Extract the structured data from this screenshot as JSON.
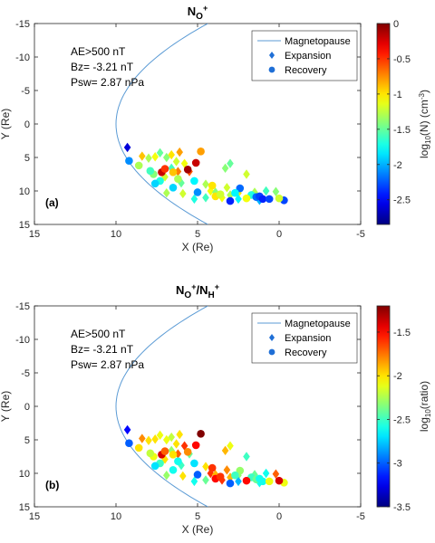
{
  "chart_data": [
    {
      "type": "scatter",
      "panel_tag": "(a)",
      "title": {
        "main": "N",
        "sub": "O",
        "sup": "+"
      },
      "xlabel": "X (Re)",
      "ylabel": "Y (Re)",
      "xlim": [
        15,
        -5
      ],
      "ylim": [
        -15,
        15
      ],
      "xticks": [
        "15",
        "10",
        "5",
        "0",
        "-5"
      ],
      "yticks": [
        "-15",
        "-10",
        "-5",
        "0",
        "5",
        "10",
        "15"
      ],
      "annotations": [
        "AE>500 nT",
        "Bz= -3.21 nT",
        "Psw= 2.87 nPa"
      ],
      "legend": [
        "Magnetopause",
        "Expansion",
        "Recovery"
      ],
      "legend_position": "top-right",
      "magnetopause_color": "#5b9bd5",
      "colorbar": {
        "label": "log10(N) (cm-3)",
        "label_parts": [
          "log",
          "10",
          "(N) (cm",
          "-3",
          ")"
        ],
        "range": [
          -2.85,
          0
        ],
        "ticks": [
          "0",
          "-0.5",
          "-1",
          "-1.5",
          "-2",
          "-2.5"
        ]
      },
      "series": [
        {
          "name": "Expansion",
          "marker": "diamond",
          "points": [
            [
              9.3,
              3.5,
              -2.6
            ],
            [
              8.4,
              4.8,
              -0.9
            ],
            [
              8.0,
              5.1,
              -1.3
            ],
            [
              7.6,
              4.9,
              -1.1
            ],
            [
              7.3,
              4.3,
              -1.5
            ],
            [
              6.9,
              5.0,
              -1.4
            ],
            [
              6.6,
              4.6,
              -1.0
            ],
            [
              6.3,
              5.6,
              -1.2
            ],
            [
              6.1,
              4.2,
              -0.8
            ],
            [
              5.8,
              5.9,
              -1.1
            ],
            [
              6.6,
              6.6,
              -1.6
            ],
            [
              6.2,
              7.1,
              -0.7
            ],
            [
              5.5,
              7.1,
              -0.6
            ],
            [
              7.0,
              7.9,
              -1.2
            ],
            [
              6.0,
              8.8,
              -1.5
            ],
            [
              4.5,
              9.0,
              -1.3
            ],
            [
              4.2,
              10.0,
              -1.1
            ],
            [
              3.9,
              10.2,
              -1.4
            ],
            [
              3.2,
              9.5,
              -1.2
            ],
            [
              3.0,
              10.6,
              -1.3
            ],
            [
              2.5,
              10.3,
              -1.0
            ],
            [
              3.3,
              6.6,
              -1.4
            ],
            [
              3.0,
              5.9,
              -1.5
            ],
            [
              2.0,
              7.5,
              -1.2
            ],
            [
              1.5,
              10.2,
              -1.3
            ],
            [
              0.8,
              10.0,
              -1.6
            ],
            [
              0.2,
              10.1,
              -1.4
            ],
            [
              1.2,
              11.4,
              -2.0
            ],
            [
              2.5,
              11.2,
              -1.8
            ],
            [
              3.5,
              11.0,
              -1.1
            ],
            [
              4.5,
              11.0,
              -1.6
            ],
            [
              5.2,
              11.2,
              -1.7
            ],
            [
              5.9,
              10.4,
              -1.2
            ],
            [
              6.9,
              10.3,
              -1.3
            ]
          ]
        },
        {
          "name": "Recovery",
          "marker": "circle",
          "points": [
            [
              9.2,
              5.5,
              -2.1
            ],
            [
              8.6,
              6.2,
              -1.3
            ],
            [
              7.7,
              7.5,
              -1.4
            ],
            [
              7.9,
              7.0,
              -1.6
            ],
            [
              7.2,
              7.2,
              -0.2
            ],
            [
              7.0,
              6.7,
              -0.5
            ],
            [
              6.5,
              7.2,
              -0.9
            ],
            [
              6.2,
              8.2,
              -1.3
            ],
            [
              7.3,
              8.5,
              -1.7
            ],
            [
              7.6,
              8.9,
              -1.9
            ],
            [
              6.5,
              9.5,
              -1.9
            ],
            [
              5.6,
              6.8,
              -0.1
            ],
            [
              5.1,
              5.8,
              -0.2
            ],
            [
              4.8,
              4.1,
              -0.8
            ],
            [
              5.2,
              8.5,
              -1.8
            ],
            [
              5.0,
              10.2,
              -2.1
            ],
            [
              3.9,
              10.8,
              -1.0
            ],
            [
              3.6,
              10.5,
              -1.2
            ],
            [
              2.4,
              9.6,
              -2.2
            ],
            [
              2.7,
              10.3,
              -1.8
            ],
            [
              1.7,
              10.6,
              -1.7
            ],
            [
              1.4,
              10.9,
              -2.2
            ],
            [
              1.2,
              10.8,
              -2.3
            ],
            [
              1.0,
              11.2,
              -2.4
            ],
            [
              0.6,
              11.2,
              -2.3
            ],
            [
              -0.3,
              11.4,
              -2.3
            ],
            [
              0.0,
              11.1,
              -1.2
            ],
            [
              4.1,
              9.2,
              -1.0
            ],
            [
              3.0,
              11.5,
              -2.4
            ],
            [
              2.0,
              11.1,
              -1.1
            ]
          ]
        }
      ]
    },
    {
      "type": "scatter",
      "panel_tag": "(b)",
      "title": {
        "main": "N",
        "sub": "O",
        "sup": "+",
        "main2": "/N",
        "sub2": "H",
        "sup2": "+"
      },
      "xlabel": "X (Re)",
      "ylabel": "Y (Re)",
      "xlim": [
        15,
        -5
      ],
      "ylim": [
        -15,
        15
      ],
      "xticks": [
        "15",
        "10",
        "5",
        "0",
        "-5"
      ],
      "yticks": [
        "-15",
        "-10",
        "-5",
        "0",
        "5",
        "10",
        "15"
      ],
      "annotations": [
        "AE>500 nT",
        "Bz= -3.21 nT",
        "Psw= 2.87 nPa"
      ],
      "legend": [
        "Magnetopause",
        "Expansion",
        "Recovery"
      ],
      "legend_position": "top-right",
      "magnetopause_color": "#5b9bd5",
      "colorbar": {
        "label": "log10(ratio)",
        "label_parts": [
          "log",
          "10",
          "(ratio)",
          "",
          ""
        ],
        "range": [
          -3.5,
          -1.2
        ],
        "ticks": [
          "-1.5",
          "-2",
          "-2.5",
          "-3",
          "-3.5"
        ]
      },
      "series": [
        {
          "name": "Expansion",
          "marker": "diamond",
          "points": [
            [
              9.3,
              3.5,
              -3.2
            ],
            [
              8.4,
              4.8,
              -1.8
            ],
            [
              8.0,
              5.1,
              -2.0
            ],
            [
              7.6,
              4.9,
              -2.0
            ],
            [
              7.3,
              4.3,
              -2.1
            ],
            [
              6.9,
              5.0,
              -2.1
            ],
            [
              6.6,
              4.6,
              -2.2
            ],
            [
              6.3,
              5.6,
              -2.0
            ],
            [
              6.1,
              4.2,
              -2.0
            ],
            [
              5.8,
              5.9,
              -1.6
            ],
            [
              6.6,
              6.6,
              -2.3
            ],
            [
              6.2,
              7.1,
              -1.7
            ],
            [
              5.5,
              7.1,
              -2.4
            ],
            [
              7.0,
              7.9,
              -2.0
            ],
            [
              6.0,
              8.8,
              -2.5
            ],
            [
              4.5,
              9.0,
              -2.0
            ],
            [
              4.2,
              10.0,
              -1.6
            ],
            [
              3.9,
              10.2,
              -1.9
            ],
            [
              3.2,
              9.5,
              -1.8
            ],
            [
              3.0,
              10.6,
              -1.9
            ],
            [
              2.5,
              10.3,
              -2.3
            ],
            [
              3.3,
              6.6,
              -1.9
            ],
            [
              3.0,
              5.9,
              -2.1
            ],
            [
              2.0,
              7.5,
              -2.5
            ],
            [
              1.5,
              10.2,
              -2.4
            ],
            [
              0.8,
              10.0,
              -2.6
            ],
            [
              0.2,
              10.1,
              -1.7
            ],
            [
              1.2,
              11.4,
              -2.6
            ],
            [
              2.5,
              11.2,
              -2.8
            ],
            [
              3.5,
              11.0,
              -1.6
            ],
            [
              4.5,
              11.0,
              -2.4
            ],
            [
              5.2,
              11.2,
              -2.6
            ],
            [
              5.9,
              10.4,
              -2.0
            ],
            [
              6.9,
              10.3,
              -2.3
            ]
          ]
        },
        {
          "name": "Recovery",
          "marker": "circle",
          "points": [
            [
              9.2,
              5.5,
              -3.0
            ],
            [
              8.6,
              6.2,
              -2.0
            ],
            [
              7.7,
              7.5,
              -2.1
            ],
            [
              7.9,
              7.0,
              -2.2
            ],
            [
              7.2,
              7.2,
              -1.4
            ],
            [
              7.0,
              6.7,
              -1.7
            ],
            [
              6.5,
              7.2,
              -2.0
            ],
            [
              6.2,
              8.2,
              -2.6
            ],
            [
              7.3,
              8.5,
              -2.5
            ],
            [
              7.6,
              8.9,
              -2.7
            ],
            [
              6.5,
              9.5,
              -2.6
            ],
            [
              5.6,
              6.8,
              -1.8
            ],
            [
              5.1,
              5.8,
              -1.5
            ],
            [
              4.8,
              4.1,
              -1.2
            ],
            [
              5.2,
              8.5,
              -2.7
            ],
            [
              5.0,
              10.2,
              -3.0
            ],
            [
              3.9,
              10.8,
              -1.5
            ],
            [
              3.6,
              10.5,
              -1.6
            ],
            [
              2.4,
              9.6,
              -2.3
            ],
            [
              2.7,
              10.3,
              -2.5
            ],
            [
              1.7,
              10.6,
              -2.5
            ],
            [
              1.4,
              10.9,
              -2.4
            ],
            [
              1.2,
              10.8,
              -2.6
            ],
            [
              1.0,
              11.2,
              -2.6
            ],
            [
              0.6,
              11.2,
              -2.1
            ],
            [
              -0.3,
              11.4,
              -2.1
            ],
            [
              0.0,
              11.1,
              -1.4
            ],
            [
              4.1,
              9.2,
              -1.6
            ],
            [
              3.0,
              11.5,
              -3.0
            ],
            [
              2.0,
              11.1,
              -1.5
            ]
          ]
        }
      ]
    }
  ]
}
